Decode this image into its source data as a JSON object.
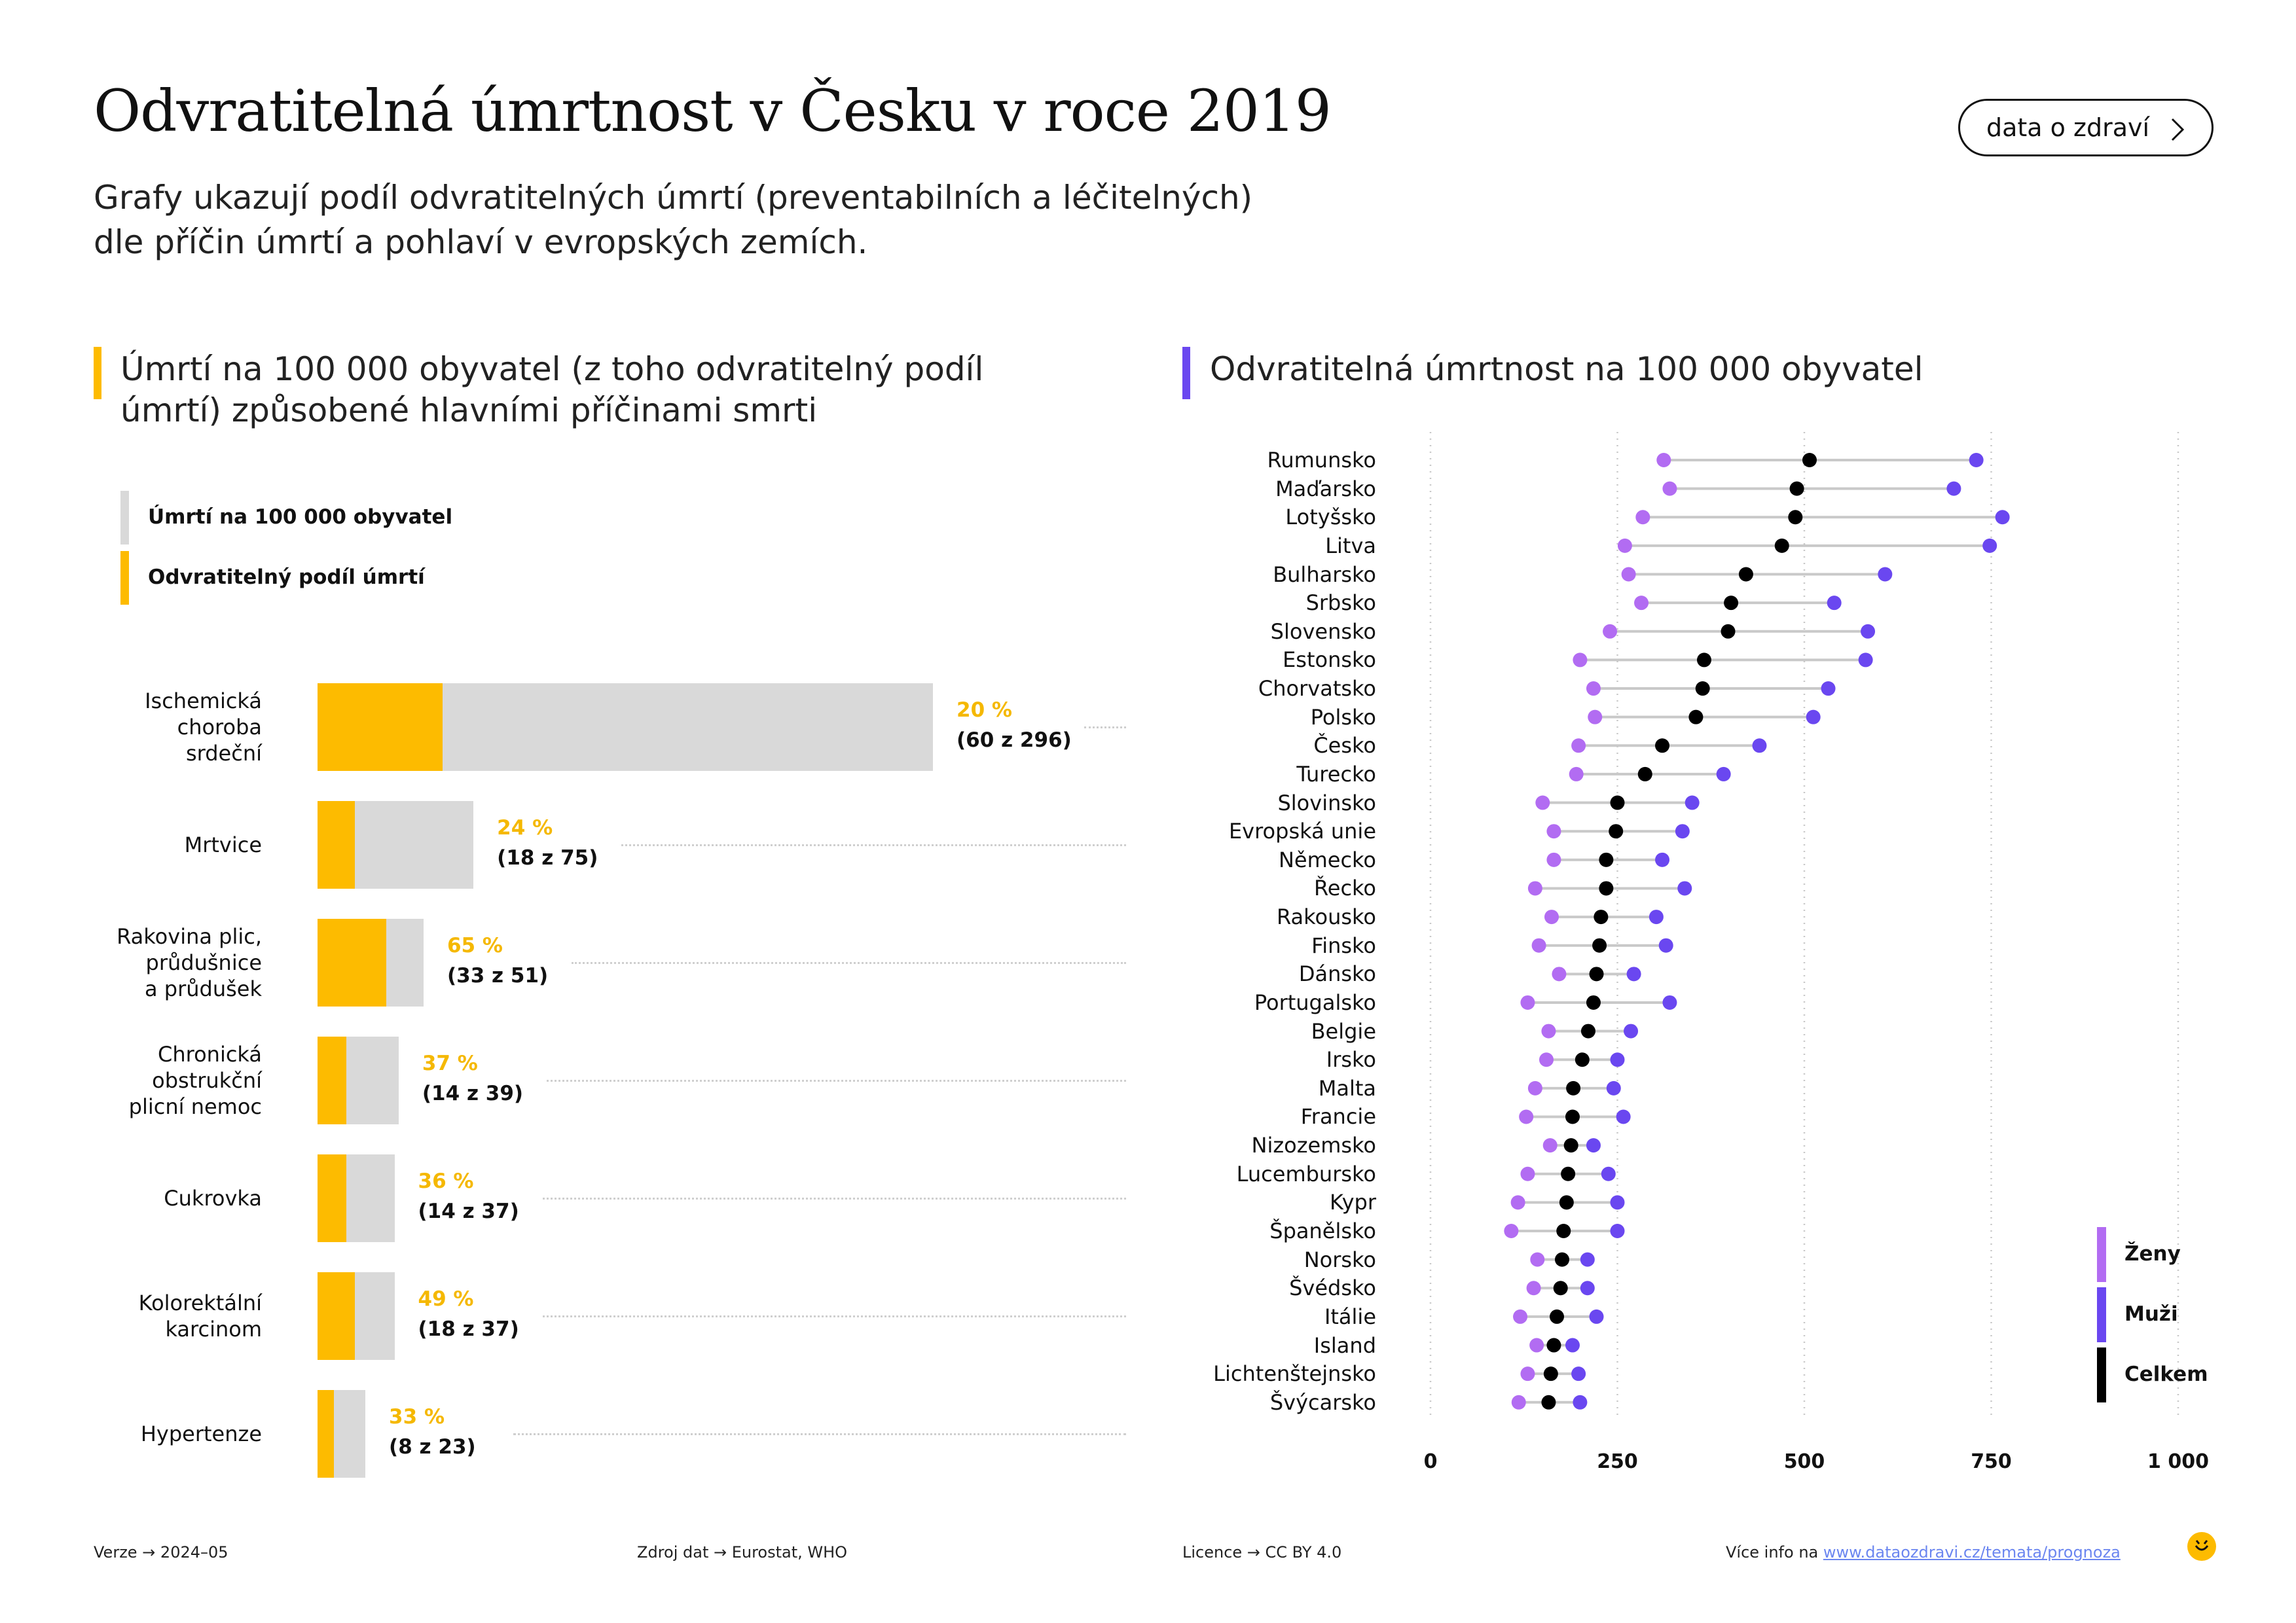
{
  "title": "Odvratitelná úmrtnost v Česku v roce 2019",
  "subtitle": {
    "line1": "Grafy ukazují podíl odvratitelných úmrtí (preventabilních a léčitelných)",
    "line2": "dle příčin úmrtí a pohlaví v evropských zemích."
  },
  "header_button": {
    "label": "data o zdraví",
    "icon": "chevron-right-icon"
  },
  "colors": {
    "yellow": "#fdbb00",
    "grey": "#d9d9d9",
    "women": "#b26cf2",
    "men": "#6a47f0",
    "total": "#000000",
    "accent_left": "#fdbb00",
    "accent_right": "#6a47f0"
  },
  "left_panel": {
    "title_line1": "Úmrtí na 100 000 obyvatel (z toho odvratitelný podíl",
    "title_line2": "úmrtí) způsobené hlavními příčinami smrti",
    "legend": {
      "total": "Úmrtí na 100 000 obyvatel",
      "preventable": "Odvratitelný podíl úmrtí"
    }
  },
  "right_panel": {
    "title": "Odvratitelná úmrtnost na 100 000 obyvatel",
    "legend": {
      "women": "Ženy",
      "men": "Muži",
      "total": "Celkem"
    }
  },
  "chart_data": [
    {
      "type": "bar",
      "orientation": "horizontal",
      "stacked": true,
      "categories": [
        "Ischemická choroba srdeční",
        "Mrtvice",
        "Rakovina plic, průdušnice a průdušek",
        "Chronická obstrukční plicní nemoc",
        "Cukrovka",
        "Kolorektální karcinom",
        "Hypertenze"
      ],
      "category_lines": [
        [
          "Ischemická",
          "choroba",
          "srdeční"
        ],
        [
          "Mrtvice"
        ],
        [
          "Rakovina plic,",
          "průdušnice",
          "a průdušek"
        ],
        [
          "Chronická",
          "obstrukční",
          "plicní nemoc"
        ],
        [
          "Cukrovka"
        ],
        [
          "Kolorektální",
          "karcinom"
        ],
        [
          "Hypertenze"
        ]
      ],
      "series": [
        {
          "name": "Úmrtí na 100 000 obyvatel",
          "values": [
            296,
            75,
            51,
            39,
            37,
            37,
            23
          ]
        },
        {
          "name": "Odvratitelný podíl úmrtí",
          "values": [
            60,
            18,
            33,
            14,
            14,
            18,
            8
          ]
        }
      ],
      "percent_labels": [
        "20 %",
        "24 %",
        "65 %",
        "37 %",
        "36 %",
        "49 %",
        "33 %"
      ],
      "count_labels": [
        "(60 z 296)",
        "(18 z 75)",
        "(33 z 51)",
        "(14 z 39)",
        "(14 z 37)",
        "(18 z 37)",
        "(8 z 23)"
      ]
    },
    {
      "type": "scatter",
      "style": "dumbbell",
      "categories": [
        "Rumunsko",
        "Maďarsko",
        "Lotyšsko",
        "Litva",
        "Bulharsko",
        "Srbsko",
        "Slovensko",
        "Estonsko",
        "Chorvatsko",
        "Polsko",
        "Česko",
        "Turecko",
        "Slovinsko",
        "Evropská unie",
        "Německo",
        "Řecko",
        "Rakousko",
        "Finsko",
        "Dánsko",
        "Portugalsko",
        "Belgie",
        "Irsko",
        "Malta",
        "Francie",
        "Nizozemsko",
        "Lucembursko",
        "Kypr",
        "Španělsko",
        "Norsko",
        "Švédsko",
        "Itálie",
        "Island",
        "Lichtenštejnsko",
        "Švýcarsko"
      ],
      "series": [
        {
          "name": "Ženy",
          "values": [
            312,
            320,
            284,
            260,
            265,
            282,
            240,
            200,
            218,
            220,
            198,
            195,
            150,
            165,
            165,
            140,
            162,
            145,
            172,
            130,
            158,
            155,
            140,
            128,
            160,
            130,
            117,
            108,
            143,
            138,
            120,
            142,
            130,
            118
          ]
        },
        {
          "name": "Muži",
          "values": [
            730,
            700,
            765,
            748,
            608,
            540,
            585,
            582,
            532,
            512,
            440,
            392,
            350,
            337,
            310,
            340,
            302,
            315,
            272,
            320,
            268,
            250,
            245,
            258,
            218,
            238,
            250,
            250,
            210,
            210,
            222,
            190,
            198,
            200
          ]
        },
        {
          "name": "Celkem",
          "values": [
            507,
            490,
            488,
            470,
            422,
            402,
            398,
            366,
            364,
            355,
            310,
            287,
            250,
            248,
            235,
            235,
            228,
            226,
            222,
            218,
            211,
            203,
            191,
            190,
            188,
            184,
            182,
            178,
            176,
            174,
            169,
            165,
            161,
            158
          ]
        }
      ],
      "xlim": [
        0,
        1000
      ],
      "xticks": [
        "0",
        "250",
        "500",
        "750",
        "1 000"
      ],
      "grid": true,
      "legend_position": "bottom-right"
    }
  ],
  "footer": {
    "version": "Verze → 2024–05",
    "source": "Zdroj dat → Eurostat, WHO",
    "license": "Licence → CC BY 4.0",
    "more_info_prefix": "Více info na ",
    "more_info_link": "www.dataozdravi.cz/temata/prognoza",
    "logo_icon": "smile-logo-icon"
  }
}
